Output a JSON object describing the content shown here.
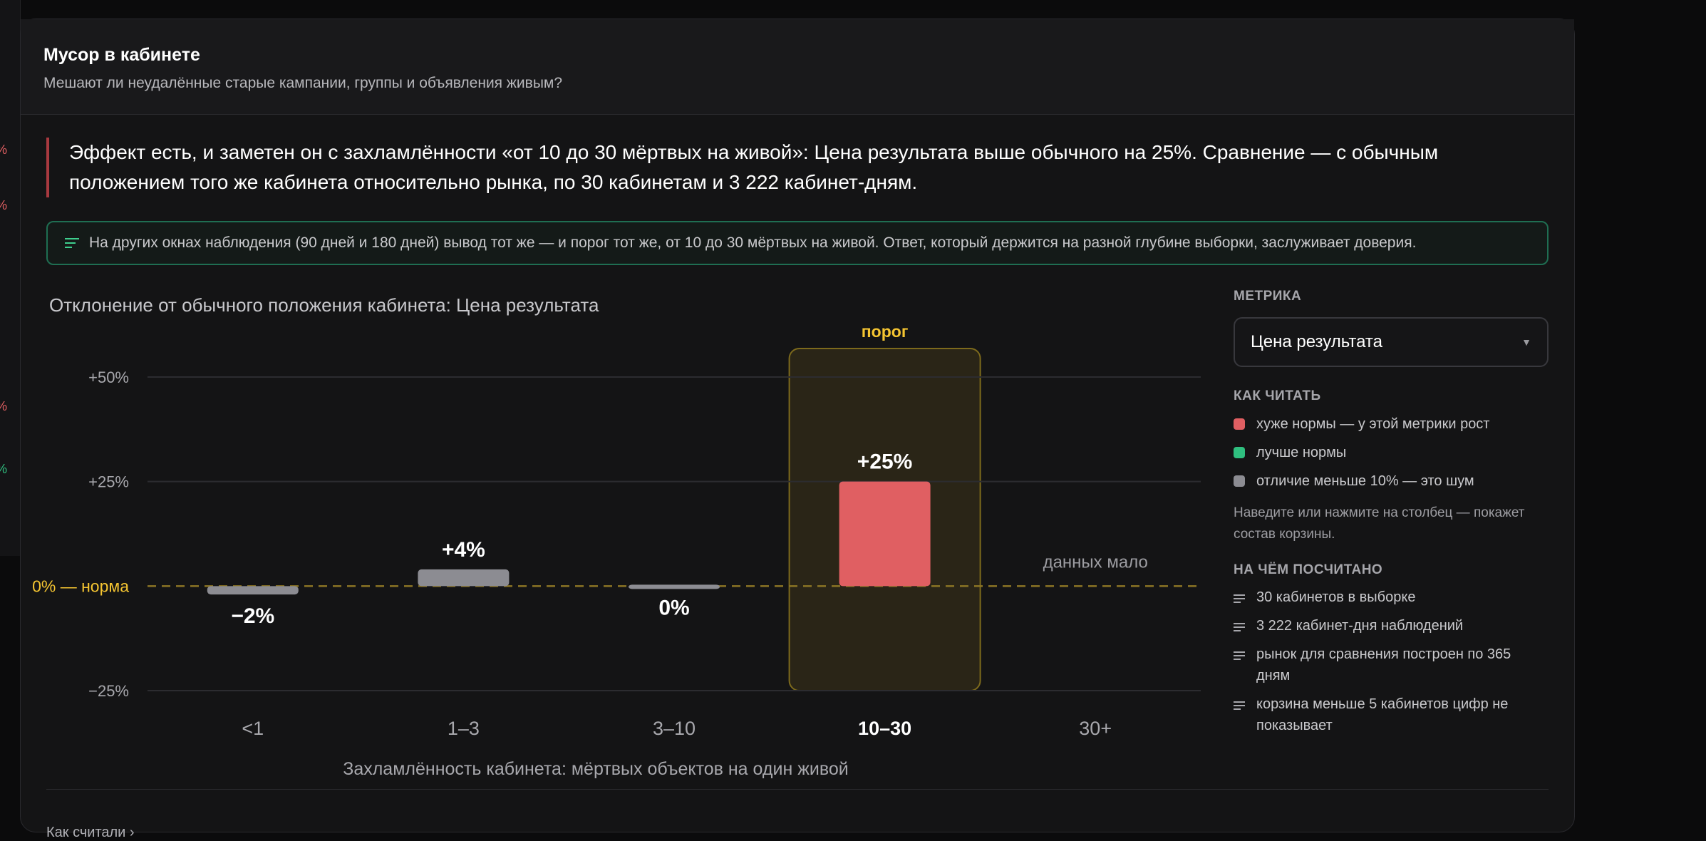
{
  "left_strip": {
    "marks": [
      "%",
      "%",
      "%",
      "%"
    ]
  },
  "card": {
    "title": "Мусор в кабинете",
    "subtitle": "Мешают ли неудалённые старые кампании, группы и объявления живым?"
  },
  "verdict": {
    "line1": "Эффект есть, и заметен он с захламлённости «от 10 до 30 мёртвых на живой»: Цена результата выше обычного на 25%. Сравнение — с обычным",
    "line2": "положением того же кабинета относительно рынка, по 30 кабинетам и 3 222 кабинет-дням."
  },
  "note": {
    "icon": "list-icon",
    "text": "На других окнах наблюдения (90 дней и 180 дней) вывод тот же — и порог тот же, от 10 до 30 мёртвых на живой. Ответ, который держится на разной глубине выборки, заслуживает доверия."
  },
  "colors": {
    "worse": "#e05f62",
    "better": "#2fbf7f",
    "noise": "#8c8c92",
    "threshold": "#f5c531",
    "accent_border": "#a8393f"
  },
  "chart_data": {
    "type": "bar",
    "title": "Отклонение от обычного положения кабинета: Цена результата",
    "xlabel": "Захламлённость кабинета: мёртвых объектов на один живой",
    "ylabel": "",
    "categories": [
      "<1",
      "1–3",
      "3–10",
      "10–30",
      "30+"
    ],
    "values": [
      -2,
      4,
      0,
      25,
      null
    ],
    "value_labels": [
      "−2%",
      "+4%",
      "0%",
      "+25%",
      ""
    ],
    "status": [
      "noise",
      "noise",
      "noise",
      "worse",
      "empty"
    ],
    "empty_label": "данных мало",
    "ylim": [
      -25,
      50
    ],
    "yticks": [
      50,
      25,
      0,
      -25
    ],
    "ytick_labels": [
      "+50%",
      "+25%",
      "",
      "−25%"
    ],
    "zero_label": "0% — норма",
    "threshold_category": "10–30",
    "threshold_label": "порог",
    "grid": true,
    "legend_position": "right"
  },
  "sidebar": {
    "metric_heading": "МЕТРИКА",
    "metric_value": "Цена результата",
    "read_heading": "КАК ЧИТАТЬ",
    "legend": [
      {
        "color_key": "worse",
        "label": "хуже нормы — у этой метрики рост"
      },
      {
        "color_key": "better",
        "label": "лучше нормы"
      },
      {
        "color_key": "noise",
        "label": "отличие меньше 10% — это шум"
      }
    ],
    "hint": "Наведите или нажмите на столбец — покажет состав корзины.",
    "facts_heading": "НА ЧЁМ ПОСЧИТАНО",
    "facts": [
      "30 кабинетов в выборке",
      "3 222 кабинет-дня наблюдений",
      "рынок для сравнения построен по 365 дням",
      "корзина меньше 5 кабинетов цифр не показывает"
    ]
  },
  "footer": {
    "link": "Как считали  ›"
  }
}
